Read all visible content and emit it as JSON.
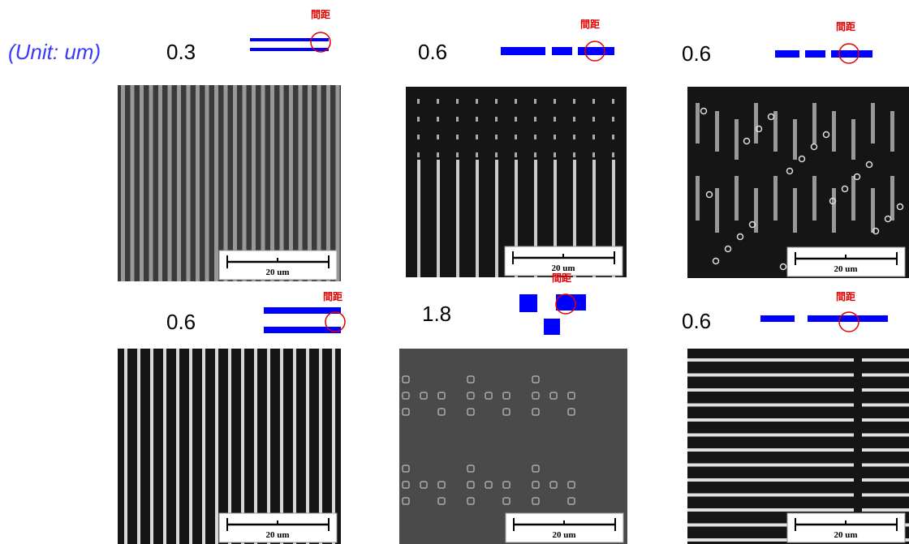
{
  "unit_label": "(Unit: um)",
  "panels": [
    {
      "spacing": "0.3",
      "marker": "間距",
      "scale_bar": "20 um"
    },
    {
      "spacing": "0.6",
      "marker": "間距",
      "scale_bar": "20 um"
    },
    {
      "spacing": "0.6",
      "marker": "間距",
      "scale_bar": "20 um"
    },
    {
      "spacing": "0.6",
      "marker": "間距",
      "scale_bar": "20 um"
    },
    {
      "spacing": "1.8",
      "marker": "間距",
      "scale_bar": "20 um"
    },
    {
      "spacing": "0.6",
      "marker": "間距",
      "scale_bar": "20 um"
    }
  ]
}
